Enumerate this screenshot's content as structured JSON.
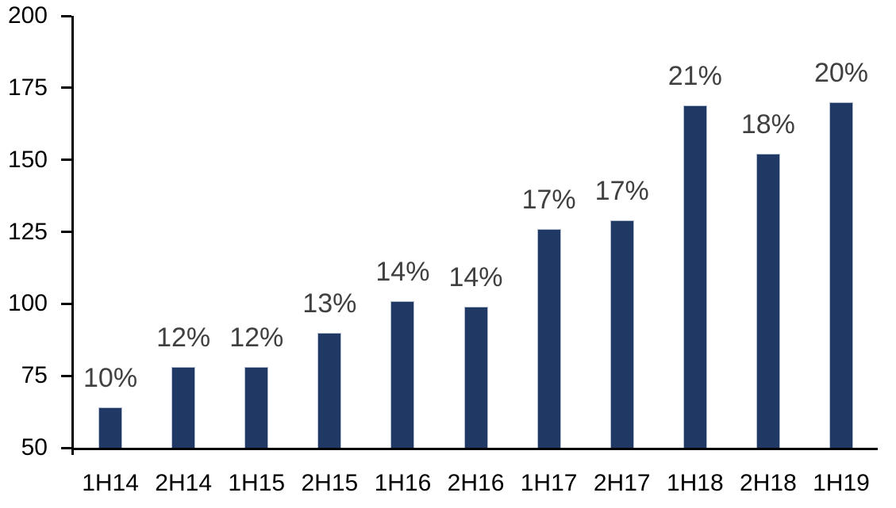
{
  "chart_data": {
    "type": "bar",
    "title": "",
    "xlabel": "",
    "ylabel": "",
    "categories": [
      "1H14",
      "2H14",
      "1H15",
      "2H15",
      "1H16",
      "2H16",
      "1H17",
      "2H17",
      "1H18",
      "2H18",
      "1H19"
    ],
    "values": [
      64,
      78,
      78,
      90,
      101,
      99,
      126,
      129,
      169,
      152,
      170
    ],
    "bar_labels": [
      "10%",
      "12%",
      "12%",
      "13%",
      "14%",
      "14%",
      "17%",
      "17%",
      "21%",
      "18%",
      "20%"
    ],
    "ylim": [
      50,
      200
    ],
    "yticks": [
      200,
      175,
      150,
      125,
      100,
      75,
      50
    ],
    "grid": false,
    "legend": false,
    "colors": {
      "bar_fill": "#1F3864",
      "bar_border": "#b3bdcd",
      "data_label": "#404040",
      "axis_text": "#000000",
      "axis_line": "#000000",
      "background": "#ffffff"
    }
  }
}
